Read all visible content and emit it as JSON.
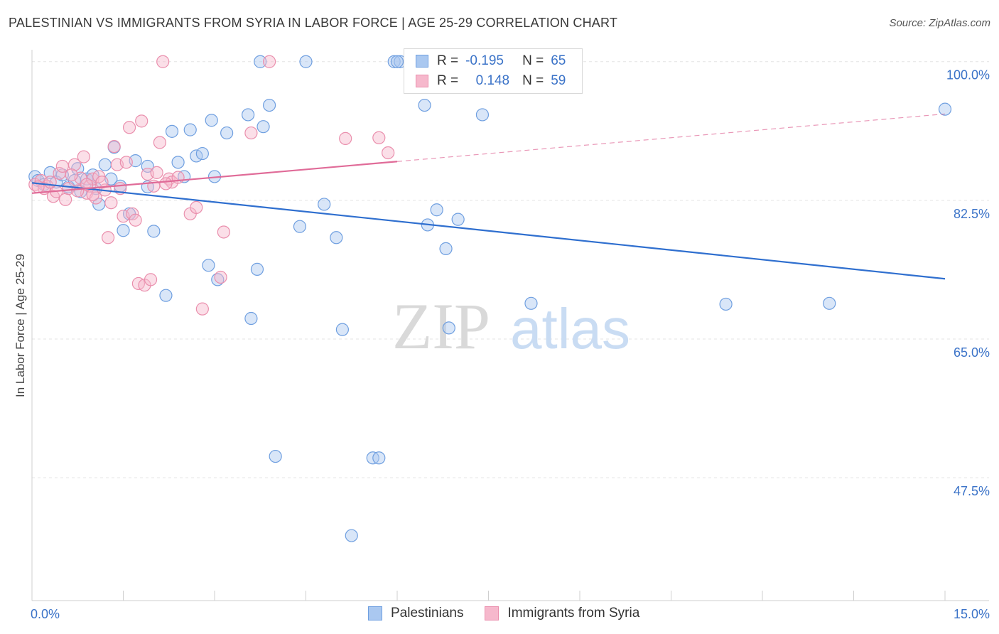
{
  "title": "PALESTINIAN VS IMMIGRANTS FROM SYRIA IN LABOR FORCE | AGE 25-29 CORRELATION CHART",
  "source": "Source: ZipAtlas.com",
  "watermark": {
    "zip": "ZIP",
    "atlas": "atlas"
  },
  "legend": {
    "rows": [
      {
        "r_label": "R =",
        "r_value": "-0.195",
        "n_label": "N =",
        "n_value": "65"
      },
      {
        "r_label": "R =",
        "r_value": "0.148",
        "n_label": "N =",
        "n_value": "59"
      }
    ]
  },
  "bottom_legend": [
    "Palestinians",
    "Immigrants from Syria"
  ],
  "colors": {
    "blue_fill": "#aac8f0",
    "blue_edge": "#6f9fe0",
    "blue_line": "#2f6fcf",
    "pink_fill": "#f6b8cc",
    "pink_edge": "#ea8fad",
    "pink_line": "#e06b98",
    "axis_text": "#3b73c8",
    "grid": "#e3e3e3"
  },
  "chart_data": {
    "type": "scatter",
    "title": "PALESTINIAN VS IMMIGRANTS FROM SYRIA IN LABOR FORCE | AGE 25-29 CORRELATION CHART",
    "ylabel": "In Labor Force | Age 25-29",
    "xlabel": "",
    "xlim": [
      0,
      15
    ],
    "ylim": [
      32,
      101.5
    ],
    "x_tick_labels": [
      {
        "value": 0,
        "label": "0.0%"
      },
      {
        "value": 15,
        "label": "15.0%"
      }
    ],
    "y_tick_labels": [
      {
        "value": 100,
        "label": "100.0%"
      },
      {
        "value": 82.5,
        "label": "82.5%"
      },
      {
        "value": 65,
        "label": "65.0%"
      },
      {
        "value": 47.5,
        "label": "47.5%"
      }
    ],
    "series": [
      {
        "name": "Palestinians",
        "r": -0.195,
        "n": 65,
        "trend": {
          "x": [
            0,
            15
          ],
          "y": [
            84.7,
            72.6
          ],
          "solid_until": 15
        },
        "points": [
          [
            0.05,
            85.5
          ],
          [
            0.1,
            85.0
          ],
          [
            0.2,
            84.5
          ],
          [
            0.3,
            86.0
          ],
          [
            0.4,
            84.8
          ],
          [
            0.5,
            85.7
          ],
          [
            0.6,
            84.2
          ],
          [
            0.7,
            85.0
          ],
          [
            0.8,
            83.6
          ],
          [
            0.9,
            85.2
          ],
          [
            1.0,
            85.7
          ],
          [
            1.1,
            82.0
          ],
          [
            1.2,
            87.0
          ],
          [
            1.3,
            85.2
          ],
          [
            1.35,
            89.2
          ],
          [
            1.5,
            78.7
          ],
          [
            1.6,
            80.8
          ],
          [
            1.7,
            87.5
          ],
          [
            1.9,
            86.8
          ],
          [
            1.9,
            84.2
          ],
          [
            2.0,
            78.6
          ],
          [
            2.2,
            70.5
          ],
          [
            2.3,
            91.2
          ],
          [
            2.4,
            87.3
          ],
          [
            2.5,
            85.5
          ],
          [
            2.6,
            91.4
          ],
          [
            2.7,
            88.1
          ],
          [
            2.8,
            88.4
          ],
          [
            2.9,
            74.3
          ],
          [
            2.95,
            92.6
          ],
          [
            3.0,
            85.5
          ],
          [
            3.05,
            72.5
          ],
          [
            3.2,
            91.0
          ],
          [
            3.55,
            93.3
          ],
          [
            3.6,
            67.6
          ],
          [
            3.7,
            73.8
          ],
          [
            3.8,
            91.8
          ],
          [
            3.9,
            94.5
          ],
          [
            4.0,
            50.2
          ],
          [
            4.4,
            79.2
          ],
          [
            4.5,
            100.0
          ],
          [
            4.8,
            82.0
          ],
          [
            5.0,
            77.8
          ],
          [
            5.1,
            66.2
          ],
          [
            5.25,
            40.2
          ],
          [
            5.6,
            50.0
          ],
          [
            5.7,
            50.0
          ],
          [
            5.95,
            100.0
          ],
          [
            6.05,
            100.0
          ],
          [
            6.0,
            100.0
          ],
          [
            6.45,
            94.5
          ],
          [
            6.5,
            79.4
          ],
          [
            6.65,
            81.3
          ],
          [
            6.8,
            76.4
          ],
          [
            6.85,
            66.4
          ],
          [
            7.0,
            80.1
          ],
          [
            7.4,
            93.3
          ],
          [
            8.2,
            69.5
          ],
          [
            11.4,
            69.4
          ],
          [
            13.1,
            69.5
          ],
          [
            15.0,
            94.0
          ],
          [
            1.05,
            84.0
          ],
          [
            0.75,
            86.5
          ],
          [
            1.45,
            84.3
          ],
          [
            3.75,
            100.0
          ]
        ]
      },
      {
        "name": "Immigrants from Syria",
        "r": 0.148,
        "n": 59,
        "trend": {
          "x": [
            0,
            15
          ],
          "y": [
            83.4,
            93.4
          ],
          "solid_until": 6
        },
        "points": [
          [
            0.05,
            84.5
          ],
          [
            0.15,
            85.0
          ],
          [
            0.25,
            84.3
          ],
          [
            0.35,
            83.0
          ],
          [
            0.45,
            85.9
          ],
          [
            0.5,
            86.8
          ],
          [
            0.55,
            82.6
          ],
          [
            0.6,
            84.0
          ],
          [
            0.7,
            87.0
          ],
          [
            0.8,
            85.3
          ],
          [
            0.85,
            88.0
          ],
          [
            0.9,
            83.4
          ],
          [
            0.95,
            84.3
          ],
          [
            1.0,
            85.2
          ],
          [
            1.05,
            82.8
          ],
          [
            1.1,
            85.5
          ],
          [
            1.2,
            83.8
          ],
          [
            1.25,
            77.8
          ],
          [
            1.3,
            82.2
          ],
          [
            1.35,
            89.3
          ],
          [
            1.4,
            87.0
          ],
          [
            1.5,
            80.5
          ],
          [
            1.55,
            87.3
          ],
          [
            1.6,
            91.7
          ],
          [
            1.65,
            80.8
          ],
          [
            1.7,
            80.0
          ],
          [
            1.75,
            72.0
          ],
          [
            1.8,
            92.5
          ],
          [
            1.85,
            71.8
          ],
          [
            1.9,
            85.8
          ],
          [
            1.95,
            72.5
          ],
          [
            2.0,
            84.3
          ],
          [
            2.05,
            86.0
          ],
          [
            2.1,
            89.8
          ],
          [
            2.15,
            100.0
          ],
          [
            2.25,
            85.2
          ],
          [
            2.3,
            84.8
          ],
          [
            2.6,
            80.8
          ],
          [
            2.7,
            81.6
          ],
          [
            2.8,
            68.8
          ],
          [
            3.1,
            72.8
          ],
          [
            3.15,
            78.5
          ],
          [
            3.6,
            91.0
          ],
          [
            3.9,
            100.0
          ],
          [
            5.15,
            90.3
          ],
          [
            5.7,
            90.4
          ],
          [
            5.85,
            88.5
          ],
          [
            0.2,
            84.0
          ],
          [
            0.4,
            83.6
          ],
          [
            0.65,
            85.7
          ],
          [
            0.75,
            83.7
          ],
          [
            1.15,
            84.8
          ],
          [
            1.45,
            84.0
          ],
          [
            2.4,
            85.4
          ],
          [
            0.3,
            84.8
          ],
          [
            0.9,
            84.5
          ],
          [
            1.0,
            83.2
          ],
          [
            0.1,
            84.2
          ],
          [
            2.2,
            84.6
          ]
        ]
      }
    ]
  }
}
